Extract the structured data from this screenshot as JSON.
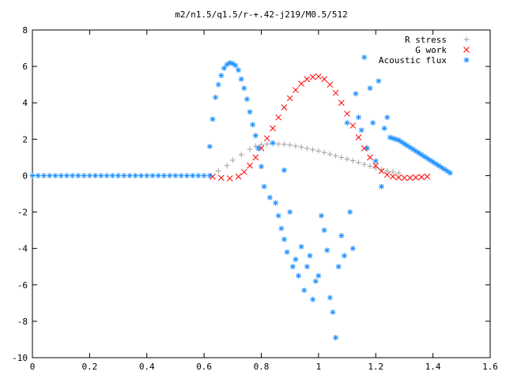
{
  "chart_data": {
    "type": "scatter",
    "title": "m2/n1.5/q1.5/r-+.42-j219/M0.5/512",
    "xlabel": "",
    "ylabel": "",
    "xlim": [
      0,
      1.6
    ],
    "ylim": [
      -10,
      8
    ],
    "x_ticks": [
      "0",
      "0.2",
      "0.4",
      "0.6",
      "0.8",
      "1",
      "1.2",
      "1.4",
      "1.6"
    ],
    "y_ticks": [
      "-10",
      "-8",
      "-6",
      "-4",
      "-2",
      "0",
      "2",
      "4",
      "6",
      "8"
    ],
    "grid": false,
    "legend_position": "top-right",
    "series": [
      {
        "name": "R stress",
        "marker": "+",
        "color": "#a0a0a0",
        "points": [
          [
            0.62,
            0.0
          ],
          [
            0.65,
            0.25
          ],
          [
            0.68,
            0.55
          ],
          [
            0.7,
            0.85
          ],
          [
            0.73,
            1.15
          ],
          [
            0.76,
            1.45
          ],
          [
            0.78,
            1.62
          ],
          [
            0.8,
            1.7
          ],
          [
            0.82,
            1.74
          ],
          [
            0.84,
            1.75
          ],
          [
            0.86,
            1.74
          ],
          [
            0.88,
            1.72
          ],
          [
            0.9,
            1.68
          ],
          [
            0.92,
            1.63
          ],
          [
            0.94,
            1.57
          ],
          [
            0.96,
            1.5
          ],
          [
            0.98,
            1.42
          ],
          [
            1.0,
            1.35
          ],
          [
            1.02,
            1.27
          ],
          [
            1.04,
            1.18
          ],
          [
            1.06,
            1.09
          ],
          [
            1.08,
            1.0
          ],
          [
            1.1,
            0.91
          ],
          [
            1.12,
            0.82
          ],
          [
            1.14,
            0.72
          ],
          [
            1.16,
            0.62
          ],
          [
            1.18,
            0.52
          ],
          [
            1.2,
            0.42
          ],
          [
            1.22,
            0.33
          ],
          [
            1.24,
            0.26
          ],
          [
            1.26,
            0.2
          ],
          [
            1.28,
            0.15
          ]
        ]
      },
      {
        "name": "G work",
        "marker": "x",
        "color": "#ff0000",
        "points": [
          [
            0.63,
            -0.05
          ],
          [
            0.66,
            -0.12
          ],
          [
            0.69,
            -0.15
          ],
          [
            0.72,
            -0.05
          ],
          [
            0.74,
            0.2
          ],
          [
            0.76,
            0.55
          ],
          [
            0.78,
            1.0
          ],
          [
            0.8,
            1.5
          ],
          [
            0.82,
            2.05
          ],
          [
            0.84,
            2.6
          ],
          [
            0.86,
            3.2
          ],
          [
            0.88,
            3.75
          ],
          [
            0.9,
            4.25
          ],
          [
            0.92,
            4.7
          ],
          [
            0.94,
            5.05
          ],
          [
            0.96,
            5.3
          ],
          [
            0.98,
            5.42
          ],
          [
            1.0,
            5.45
          ],
          [
            1.02,
            5.3
          ],
          [
            1.04,
            5.0
          ],
          [
            1.06,
            4.55
          ],
          [
            1.08,
            4.0
          ],
          [
            1.1,
            3.4
          ],
          [
            1.12,
            2.75
          ],
          [
            1.14,
            2.1
          ],
          [
            1.16,
            1.5
          ],
          [
            1.18,
            1.0
          ],
          [
            1.2,
            0.55
          ],
          [
            1.22,
            0.25
          ],
          [
            1.24,
            0.05
          ],
          [
            1.26,
            -0.05
          ],
          [
            1.28,
            -0.1
          ],
          [
            1.3,
            -0.12
          ],
          [
            1.32,
            -0.12
          ],
          [
            1.34,
            -0.1
          ],
          [
            1.36,
            -0.08
          ],
          [
            1.38,
            -0.05
          ]
        ]
      },
      {
        "name": "Acoustic flux",
        "marker": "*",
        "color": "#1e90ff",
        "points": [
          [
            0.0,
            0
          ],
          [
            0.02,
            0
          ],
          [
            0.04,
            0
          ],
          [
            0.06,
            0
          ],
          [
            0.08,
            0
          ],
          [
            0.1,
            0
          ],
          [
            0.12,
            0
          ],
          [
            0.14,
            0
          ],
          [
            0.16,
            0
          ],
          [
            0.18,
            0
          ],
          [
            0.2,
            0
          ],
          [
            0.22,
            0
          ],
          [
            0.24,
            0
          ],
          [
            0.26,
            0
          ],
          [
            0.28,
            0
          ],
          [
            0.3,
            0
          ],
          [
            0.32,
            0
          ],
          [
            0.34,
            0
          ],
          [
            0.36,
            0
          ],
          [
            0.38,
            0
          ],
          [
            0.4,
            0
          ],
          [
            0.42,
            0
          ],
          [
            0.44,
            0
          ],
          [
            0.46,
            0
          ],
          [
            0.48,
            0
          ],
          [
            0.5,
            0
          ],
          [
            0.52,
            0
          ],
          [
            0.54,
            0
          ],
          [
            0.56,
            0
          ],
          [
            0.58,
            0
          ],
          [
            0.6,
            0
          ],
          [
            0.62,
            0
          ],
          [
            0.62,
            1.6
          ],
          [
            0.63,
            3.1
          ],
          [
            0.64,
            4.3
          ],
          [
            0.65,
            5.0
          ],
          [
            0.66,
            5.5
          ],
          [
            0.67,
            5.9
          ],
          [
            0.68,
            6.1
          ],
          [
            0.69,
            6.2
          ],
          [
            0.7,
            6.15
          ],
          [
            0.71,
            6.05
          ],
          [
            0.72,
            5.8
          ],
          [
            0.73,
            5.3
          ],
          [
            0.74,
            4.8
          ],
          [
            0.75,
            4.2
          ],
          [
            0.76,
            3.5
          ],
          [
            0.77,
            2.8
          ],
          [
            0.78,
            2.2
          ],
          [
            0.79,
            1.5
          ],
          [
            0.8,
            0.5
          ],
          [
            0.81,
            -0.6
          ],
          [
            0.83,
            -1.2
          ],
          [
            0.84,
            1.8
          ],
          [
            0.85,
            -1.5
          ],
          [
            0.86,
            -2.2
          ],
          [
            0.87,
            -2.9
          ],
          [
            0.88,
            -3.5
          ],
          [
            0.88,
            0.3
          ],
          [
            0.89,
            -4.2
          ],
          [
            0.9,
            -2.0
          ],
          [
            0.91,
            -5.0
          ],
          [
            0.92,
            -4.6
          ],
          [
            0.93,
            -5.5
          ],
          [
            0.94,
            -3.9
          ],
          [
            0.95,
            -6.3
          ],
          [
            0.96,
            -5.0
          ],
          [
            0.97,
            -4.4
          ],
          [
            0.98,
            -6.8
          ],
          [
            0.99,
            -5.8
          ],
          [
            1.0,
            -5.5
          ],
          [
            1.01,
            -2.2
          ],
          [
            1.02,
            -3.0
          ],
          [
            1.03,
            -4.1
          ],
          [
            1.04,
            -6.7
          ],
          [
            1.05,
            -7.5
          ],
          [
            1.06,
            -8.9
          ],
          [
            1.07,
            -5.0
          ],
          [
            1.08,
            -3.3
          ],
          [
            1.09,
            -4.4
          ],
          [
            1.1,
            2.9
          ],
          [
            1.11,
            -2.0
          ],
          [
            1.12,
            -4.0
          ],
          [
            1.13,
            4.5
          ],
          [
            1.14,
            3.2
          ],
          [
            1.15,
            2.5
          ],
          [
            1.16,
            6.5
          ],
          [
            1.17,
            1.5
          ],
          [
            1.18,
            4.8
          ],
          [
            1.19,
            2.9
          ],
          [
            1.2,
            0.8
          ],
          [
            1.21,
            5.2
          ],
          [
            1.22,
            -0.6
          ],
          [
            1.23,
            2.6
          ],
          [
            1.24,
            3.2
          ],
          [
            1.25,
            2.1
          ],
          [
            1.26,
            2.05
          ],
          [
            1.27,
            2.0
          ],
          [
            1.28,
            1.95
          ],
          [
            1.29,
            1.85
          ],
          [
            1.3,
            1.75
          ],
          [
            1.31,
            1.65
          ],
          [
            1.32,
            1.55
          ],
          [
            1.33,
            1.45
          ],
          [
            1.34,
            1.35
          ],
          [
            1.35,
            1.25
          ],
          [
            1.36,
            1.15
          ],
          [
            1.37,
            1.05
          ],
          [
            1.38,
            0.95
          ],
          [
            1.39,
            0.85
          ],
          [
            1.4,
            0.75
          ],
          [
            1.41,
            0.65
          ],
          [
            1.42,
            0.55
          ],
          [
            1.43,
            0.45
          ],
          [
            1.44,
            0.35
          ],
          [
            1.45,
            0.25
          ],
          [
            1.46,
            0.15
          ]
        ]
      }
    ]
  }
}
